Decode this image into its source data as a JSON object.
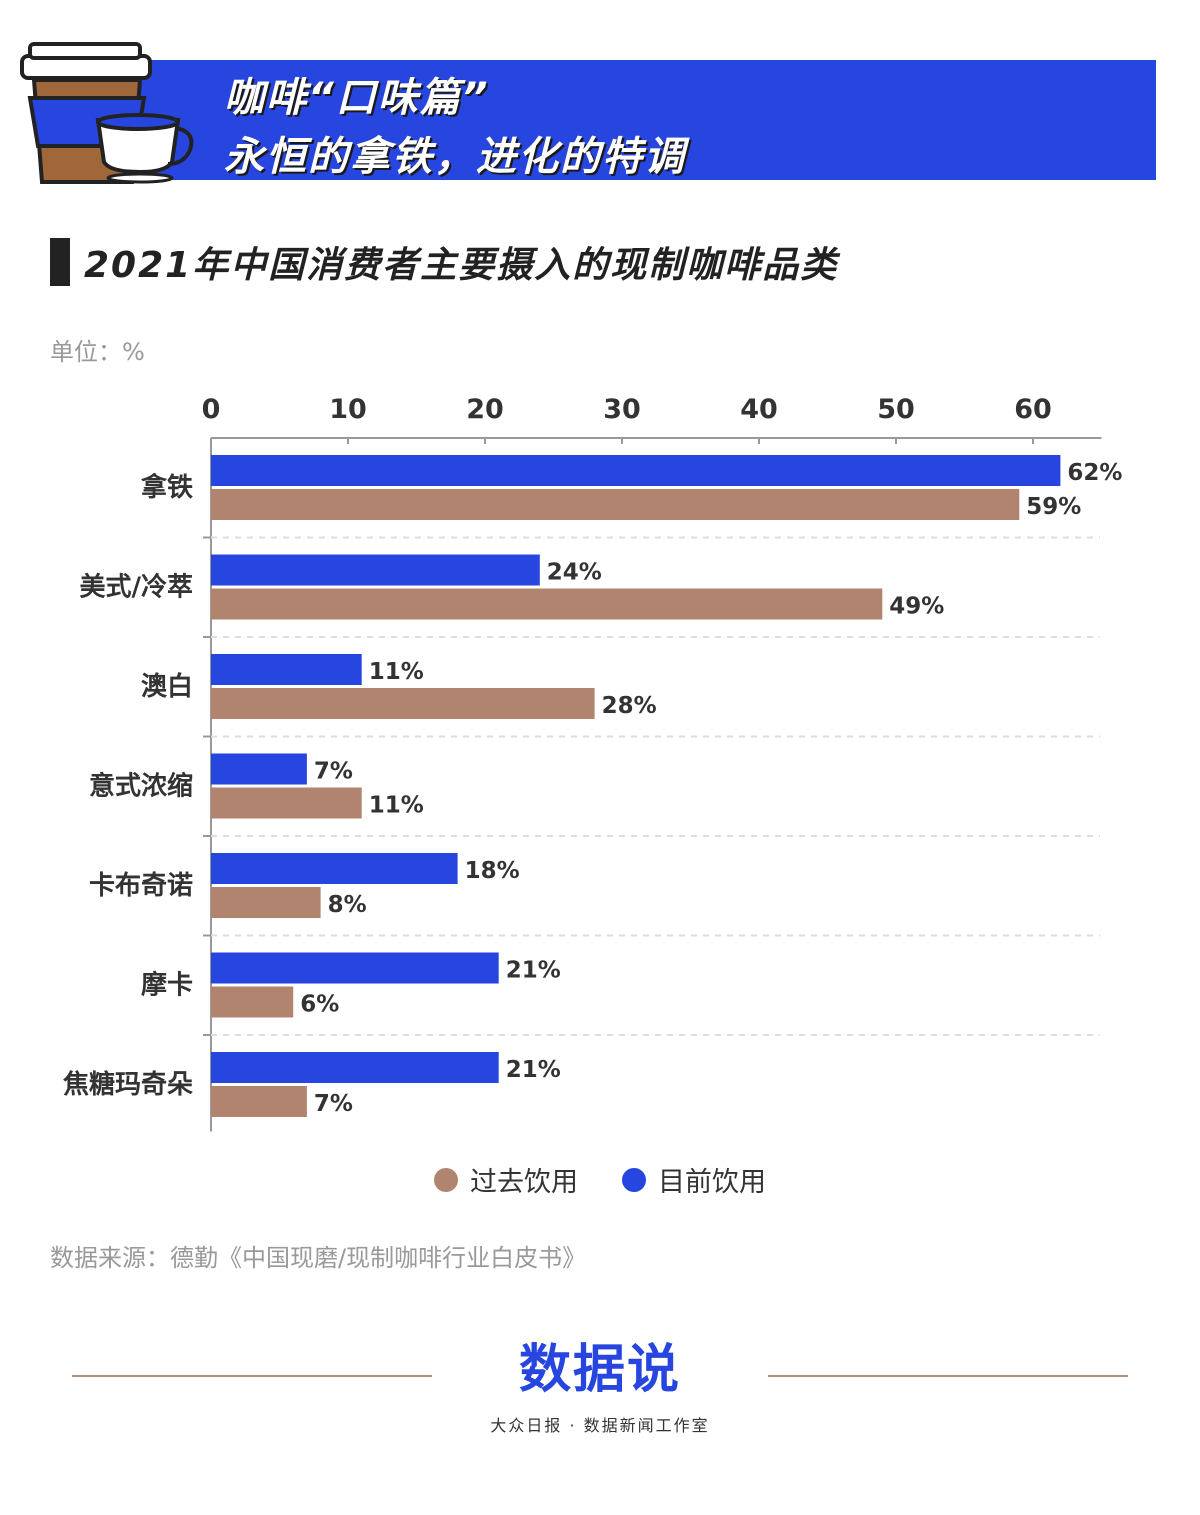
{
  "banner": {
    "line1": "咖啡“口味篇”",
    "line2": "永恒的拿铁，进化的特调"
  },
  "colors": {
    "current": "#2746e0",
    "past": "#b0846f",
    "banner": "#2746e0"
  },
  "chart_data": {
    "type": "bar",
    "orientation": "horizontal",
    "title": "2021年中国消费者主要摄入的现制咖啡品类",
    "unit_label": "单位：%",
    "xlim": [
      0,
      65
    ],
    "xticks": [
      0,
      10,
      20,
      30,
      40,
      50,
      60
    ],
    "axis_position": "top",
    "grid": "dashed horizontal separators",
    "categories": [
      "拿铁",
      "美式/冷萃",
      "澳白",
      "意式浓缩",
      "卡布奇诺",
      "摩卡",
      "焦糖玛奇朵"
    ],
    "series": [
      {
        "name": "目前饮用",
        "color": "#2746e0",
        "values": [
          62,
          24,
          11,
          7,
          18,
          21,
          21
        ],
        "labels": [
          "62%",
          "24%",
          "11%",
          "7%",
          "18%",
          "21%",
          "21%"
        ]
      },
      {
        "name": "过去饮用",
        "color": "#b0846f",
        "values": [
          59,
          49,
          28,
          11,
          8,
          6,
          7
        ],
        "labels": [
          "59%",
          "49%",
          "28%",
          "11%",
          "8%",
          "6%",
          "7%"
        ]
      }
    ],
    "legend": [
      "过去饮用",
      "目前饮用"
    ],
    "legend_position": "bottom-center"
  },
  "source": "数据来源：德勤《中国现磨/现制咖啡行业白皮书》",
  "logo": {
    "main": "数据说",
    "sub": "大众日报 · 数据新闻工作室"
  }
}
